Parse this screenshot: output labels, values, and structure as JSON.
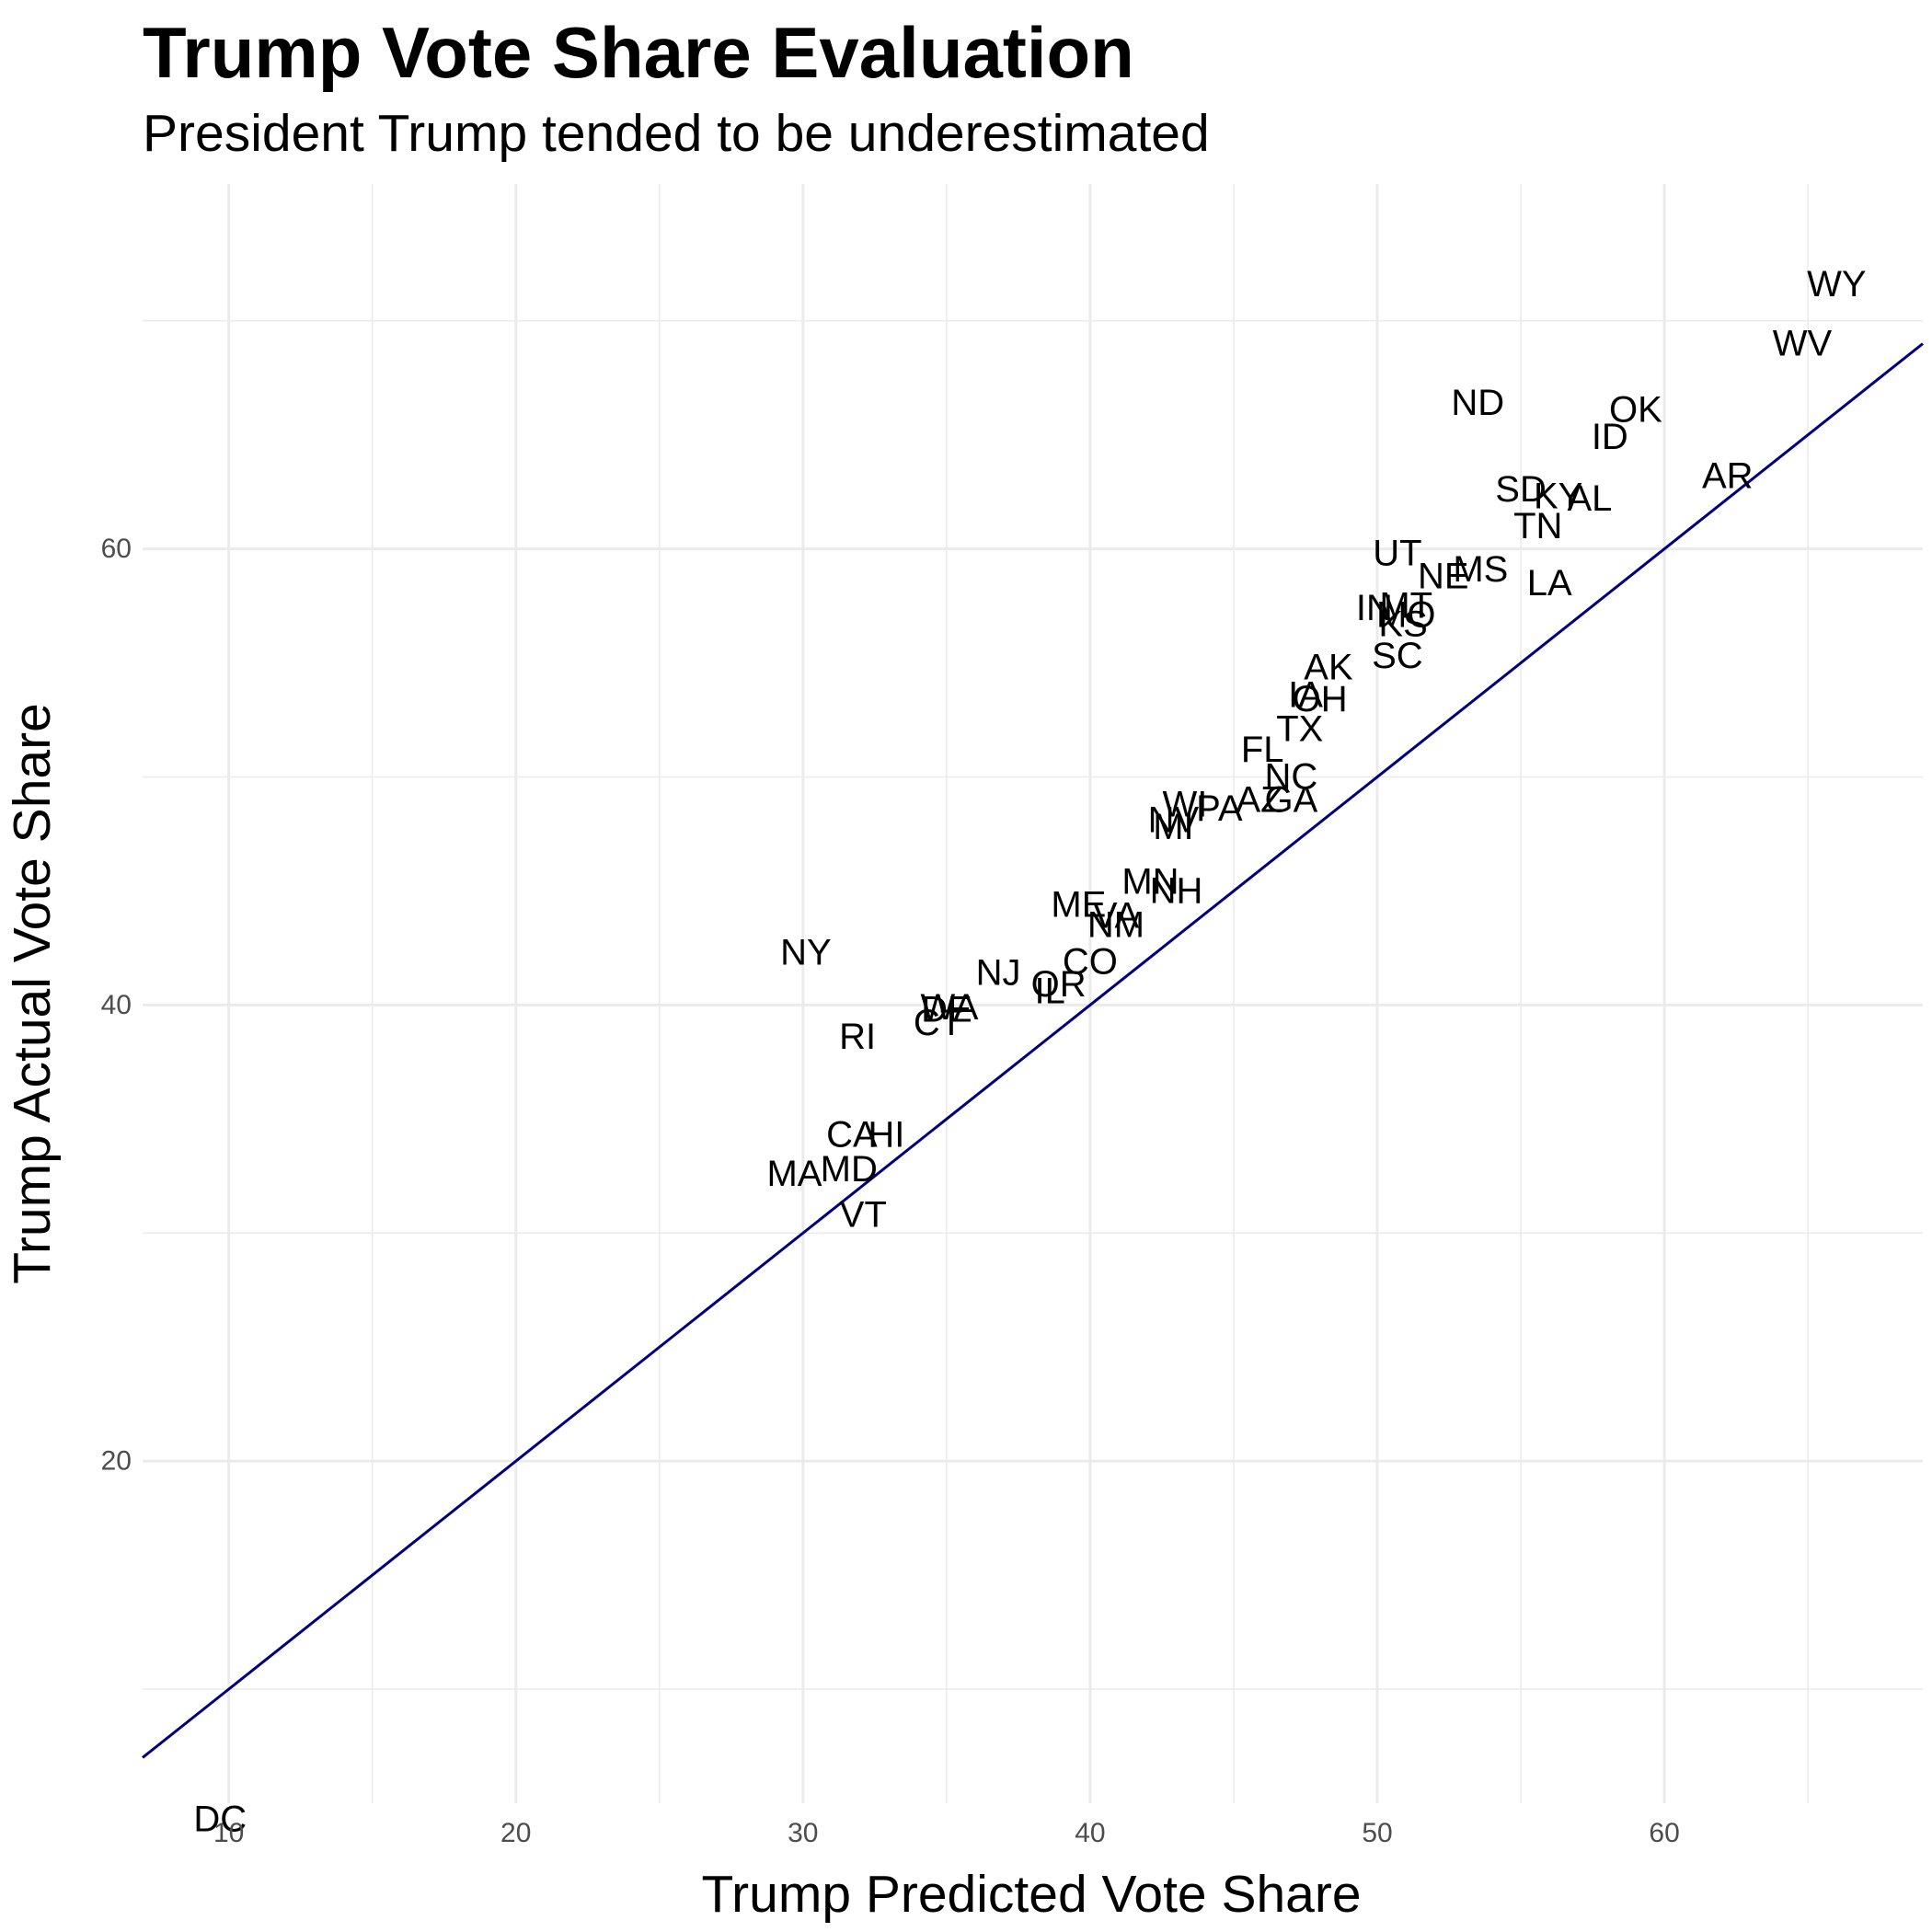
{
  "chart_data": {
    "type": "scatter",
    "title": "Trump Vote Share Evaluation",
    "subtitle": "President Trump tended to be underestimated",
    "xlabel": "Trump Predicted Vote Share",
    "ylabel": "Trump Actual Vote Share",
    "xlim": [
      7,
      69
    ],
    "ylim": [
      5,
      76
    ],
    "x_ticks": [
      10,
      20,
      30,
      40,
      50,
      60
    ],
    "y_ticks": [
      20,
      40,
      60
    ],
    "grid": true,
    "reference_line": {
      "slope": 1,
      "intercept": 0,
      "color": "#000080"
    },
    "points": [
      {
        "label": "WY",
        "x": 66.0,
        "y": 71.6
      },
      {
        "label": "WV",
        "x": 64.8,
        "y": 69.0
      },
      {
        "label": "ND",
        "x": 53.5,
        "y": 66.4
      },
      {
        "label": "OK",
        "x": 59.0,
        "y": 66.1
      },
      {
        "label": "ID",
        "x": 58.1,
        "y": 64.9
      },
      {
        "label": "AR",
        "x": 62.2,
        "y": 63.2
      },
      {
        "label": "SD",
        "x": 55.0,
        "y": 62.6
      },
      {
        "label": "KY",
        "x": 56.3,
        "y": 62.3
      },
      {
        "label": "AL",
        "x": 57.4,
        "y": 62.2
      },
      {
        "label": "TN",
        "x": 55.6,
        "y": 61.0
      },
      {
        "label": "UT",
        "x": 50.7,
        "y": 59.8
      },
      {
        "label": "MS",
        "x": 53.6,
        "y": 59.1
      },
      {
        "label": "NE",
        "x": 52.3,
        "y": 58.8
      },
      {
        "label": "LA",
        "x": 56.0,
        "y": 58.5
      },
      {
        "label": "IN",
        "x": 49.9,
        "y": 57.4
      },
      {
        "label": "MT",
        "x": 51.0,
        "y": 57.5
      },
      {
        "label": "MO",
        "x": 51.0,
        "y": 57.1
      },
      {
        "label": "KS",
        "x": 50.9,
        "y": 56.7
      },
      {
        "label": "SC",
        "x": 50.7,
        "y": 55.3
      },
      {
        "label": "AK",
        "x": 48.3,
        "y": 54.8
      },
      {
        "label": "IA",
        "x": 47.5,
        "y": 53.6
      },
      {
        "label": "OH",
        "x": 48.0,
        "y": 53.4
      },
      {
        "label": "TX",
        "x": 47.3,
        "y": 52.1
      },
      {
        "label": "FL",
        "x": 46.0,
        "y": 51.2
      },
      {
        "label": "NC",
        "x": 47.0,
        "y": 50.0
      },
      {
        "label": "AZ",
        "x": 45.9,
        "y": 49.0
      },
      {
        "label": "GA",
        "x": 47.0,
        "y": 49.0
      },
      {
        "label": "WI",
        "x": 43.3,
        "y": 48.8
      },
      {
        "label": "PA",
        "x": 44.5,
        "y": 48.6
      },
      {
        "label": "NV",
        "x": 42.9,
        "y": 48.1
      },
      {
        "label": "MI",
        "x": 42.9,
        "y": 47.8
      },
      {
        "label": "MN",
        "x": 42.1,
        "y": 45.4
      },
      {
        "label": "NH",
        "x": 43.0,
        "y": 45.0
      },
      {
        "label": "ME",
        "x": 39.6,
        "y": 44.4
      },
      {
        "label": "VA",
        "x": 40.9,
        "y": 43.9
      },
      {
        "label": "NM",
        "x": 40.9,
        "y": 43.5
      },
      {
        "label": "CO",
        "x": 40.0,
        "y": 41.9
      },
      {
        "label": "NY",
        "x": 30.1,
        "y": 42.3
      },
      {
        "label": "NJ",
        "x": 36.8,
        "y": 41.4
      },
      {
        "label": "OR",
        "x": 38.9,
        "y": 40.9
      },
      {
        "label": "IL",
        "x": 38.6,
        "y": 40.6
      },
      {
        "label": "WA",
        "x": 35.1,
        "y": 39.9
      },
      {
        "label": "DE",
        "x": 35.0,
        "y": 39.8
      },
      {
        "label": "CT",
        "x": 34.7,
        "y": 39.2
      },
      {
        "label": "RI",
        "x": 31.9,
        "y": 38.6
      },
      {
        "label": "CA",
        "x": 31.7,
        "y": 34.3
      },
      {
        "label": "HI",
        "x": 32.9,
        "y": 34.3
      },
      {
        "label": "MD",
        "x": 31.6,
        "y": 32.8
      },
      {
        "label": "MA",
        "x": 29.7,
        "y": 32.6
      },
      {
        "label": "VT",
        "x": 32.1,
        "y": 30.8
      },
      {
        "label": "DC",
        "x": 9.7,
        "y": 4.3
      }
    ]
  }
}
